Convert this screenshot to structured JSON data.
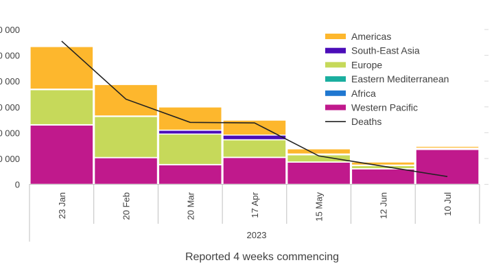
{
  "chart_data": {
    "type": "bar",
    "stacked": true,
    "categories": [
      "23 Jan",
      "20 Feb",
      "20 Mar",
      "17 Apr",
      "15 May",
      "12 Jun",
      "10 Jul"
    ],
    "year_label": "2023",
    "xlabel": "Reported 4 weeks commencing",
    "ylim": [
      0,
      6000000
    ],
    "yticks": [
      {
        "value": 0,
        "label": "0"
      },
      {
        "value": 1000000,
        "label": "0 000"
      },
      {
        "value": 2000000,
        "label": "0 000"
      },
      {
        "value": 3000000,
        "label": "0 000"
      },
      {
        "value": 4000000,
        "label": "0 000"
      },
      {
        "value": 5000000,
        "label": "0 000"
      },
      {
        "value": 6000000,
        "label": "0 000"
      }
    ],
    "series": [
      {
        "name": "Western Pacific",
        "color": "#C0198C",
        "values": [
          2300000,
          1030000,
          760000,
          1040000,
          860000,
          600000,
          1350000
        ]
      },
      {
        "name": "Africa",
        "color": "#1F77D0",
        "values": [
          5000,
          3000,
          3000,
          3000,
          2000,
          2000,
          1000
        ]
      },
      {
        "name": "Eastern Mediterranean",
        "color": "#1AAE9F",
        "values": [
          5000,
          5000,
          5000,
          5000,
          3000,
          3000,
          2000
        ]
      },
      {
        "name": "Europe",
        "color": "#C6D95A",
        "values": [
          1360000,
          1590000,
          1180000,
          680000,
          280000,
          120000,
          40000
        ]
      },
      {
        "name": "South-East Asia",
        "color": "#4B0DB8",
        "values": [
          20000,
          20000,
          150000,
          180000,
          30000,
          20000,
          10000
        ]
      },
      {
        "name": "Americas",
        "color": "#FDB72D",
        "values": [
          1650000,
          1220000,
          900000,
          580000,
          200000,
          120000,
          70000
        ]
      }
    ],
    "line_series": {
      "name": "Deaths",
      "color": "#222222",
      "values": [
        5550000,
        3300000,
        2400000,
        2380000,
        1100000,
        700000,
        300000
      ]
    },
    "legend_order": [
      "Americas",
      "South-East Asia",
      "Europe",
      "Eastern Mediterranean",
      "Africa",
      "Western Pacific",
      "Deaths"
    ],
    "legend_position": "top-right",
    "grid": false
  }
}
